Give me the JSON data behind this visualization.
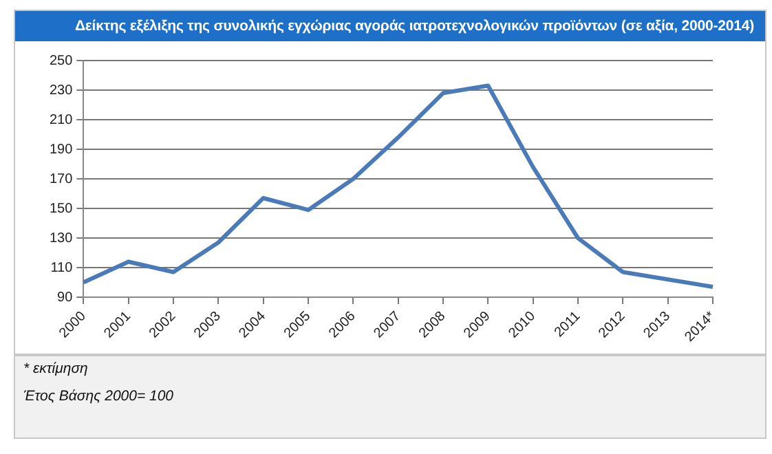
{
  "chart_data": {
    "type": "line",
    "title": "Δείκτης εξέλιξης της συνολικής εγχώριας αγοράς ιατροτεχνολογικών προϊόντων (σε αξία, 2000-2014)",
    "categories": [
      "2000",
      "2001",
      "2002",
      "2003",
      "2004",
      "2005",
      "2006",
      "2007",
      "2008",
      "2009",
      "2010",
      "2011",
      "2012",
      "2013",
      "2014*"
    ],
    "series": [
      {
        "color": "#4a7ab8",
        "values": [
          100,
          114,
          107,
          127,
          157,
          149,
          170,
          198,
          228,
          233,
          178,
          130,
          107,
          102,
          97
        ]
      }
    ],
    "ylim": [
      90,
      250
    ],
    "yticks": [
      90,
      110,
      130,
      150,
      170,
      190,
      210,
      230,
      250
    ],
    "grid": "y",
    "marker": "none",
    "line_style": "solid",
    "annotations": [
      "* εκτίμηση",
      "Έτος Βάσης 2000= 100"
    ]
  }
}
